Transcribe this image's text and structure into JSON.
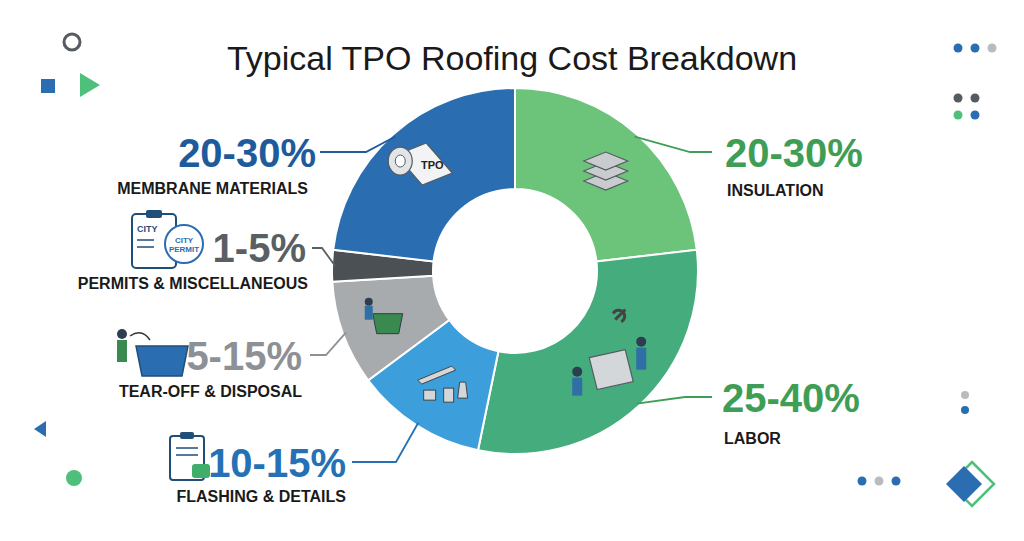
{
  "chart_data": {
    "type": "donut",
    "title": "Typical TPO Roofing Cost Breakdown",
    "categories": [
      "INSULATION",
      "LABOR",
      "FLASHING & DETAILS",
      "TEAR-OFF & DISPOSAL",
      "PERMITS & MISCELLANEOUS",
      "MEMBRANE MATERIALS"
    ],
    "values": [
      25,
      32.5,
      12.5,
      10,
      3,
      25
    ],
    "value_labels": [
      "20-30%",
      "25-40%",
      "10-15%",
      "5-15%",
      "1-5%",
      "20-30%"
    ],
    "colors": [
      "#6cc47a",
      "#45ad7d",
      "#3c9fdc",
      "#a8abae",
      "#4b5055",
      "#2a6db0"
    ],
    "annotations": [
      "TPO",
      "CITY",
      "CITY PERMIT"
    ]
  }
}
